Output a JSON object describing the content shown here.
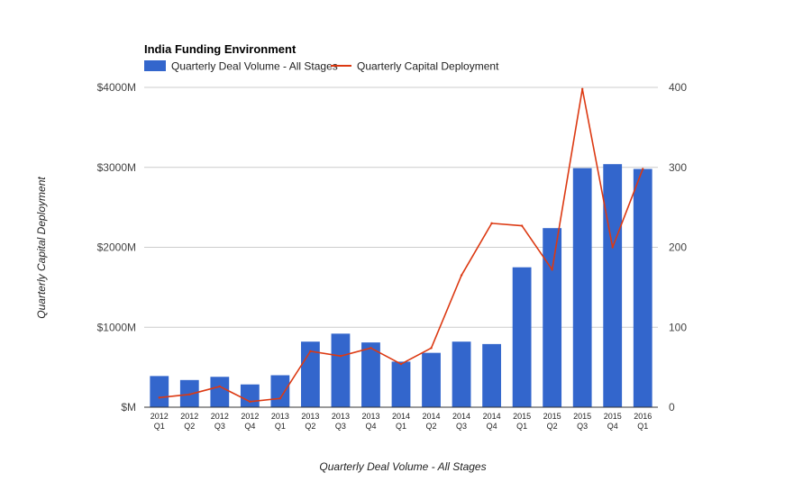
{
  "chart_data": {
    "type": "bar",
    "title": "India Funding Environment",
    "categories": [
      [
        "2012",
        "Q1"
      ],
      [
        "2012",
        "Q2"
      ],
      [
        "2012",
        "Q3"
      ],
      [
        "2012",
        "Q4"
      ],
      [
        "2013",
        "Q1"
      ],
      [
        "2013",
        "Q2"
      ],
      [
        "2013",
        "Q3"
      ],
      [
        "2013",
        "Q4"
      ],
      [
        "2014",
        "Q1"
      ],
      [
        "2014",
        "Q2"
      ],
      [
        "2014",
        "Q3"
      ],
      [
        "2014",
        "Q4"
      ],
      [
        "2015",
        "Q1"
      ],
      [
        "2015",
        "Q2"
      ],
      [
        "2015",
        "Q3"
      ],
      [
        "2015",
        "Q4"
      ],
      [
        "2016",
        "Q1"
      ]
    ],
    "series": [
      {
        "name": "Quarterly Deal Volume - All Stages",
        "type": "bar",
        "axis": "left",
        "color": "#3366cc",
        "values": [
          390,
          340,
          380,
          285,
          400,
          820,
          920,
          810,
          570,
          680,
          820,
          790,
          1750,
          2240,
          2990,
          3040,
          2980
        ]
      },
      {
        "name": "Quarterly Capital Deployment",
        "type": "line",
        "axis": "right",
        "color": "#dc3912",
        "values": [
          12,
          16,
          26,
          7,
          11,
          70,
          64,
          74,
          54,
          74,
          165,
          230,
          227,
          172,
          398,
          200,
          298
        ]
      }
    ],
    "y_left": {
      "label": "Quarterly Capital Deployment",
      "ticks": [
        "$M",
        "$1000M",
        "$2000M",
        "$3000M",
        "$4000M"
      ],
      "range": [
        0,
        4000
      ]
    },
    "y_right": {
      "ticks": [
        "0",
        "100",
        "200",
        "300",
        "400"
      ],
      "range": [
        0,
        400
      ]
    },
    "xlabel": "Quarterly Deal Volume - All Stages",
    "legend_position": "top-left",
    "grid": true
  }
}
